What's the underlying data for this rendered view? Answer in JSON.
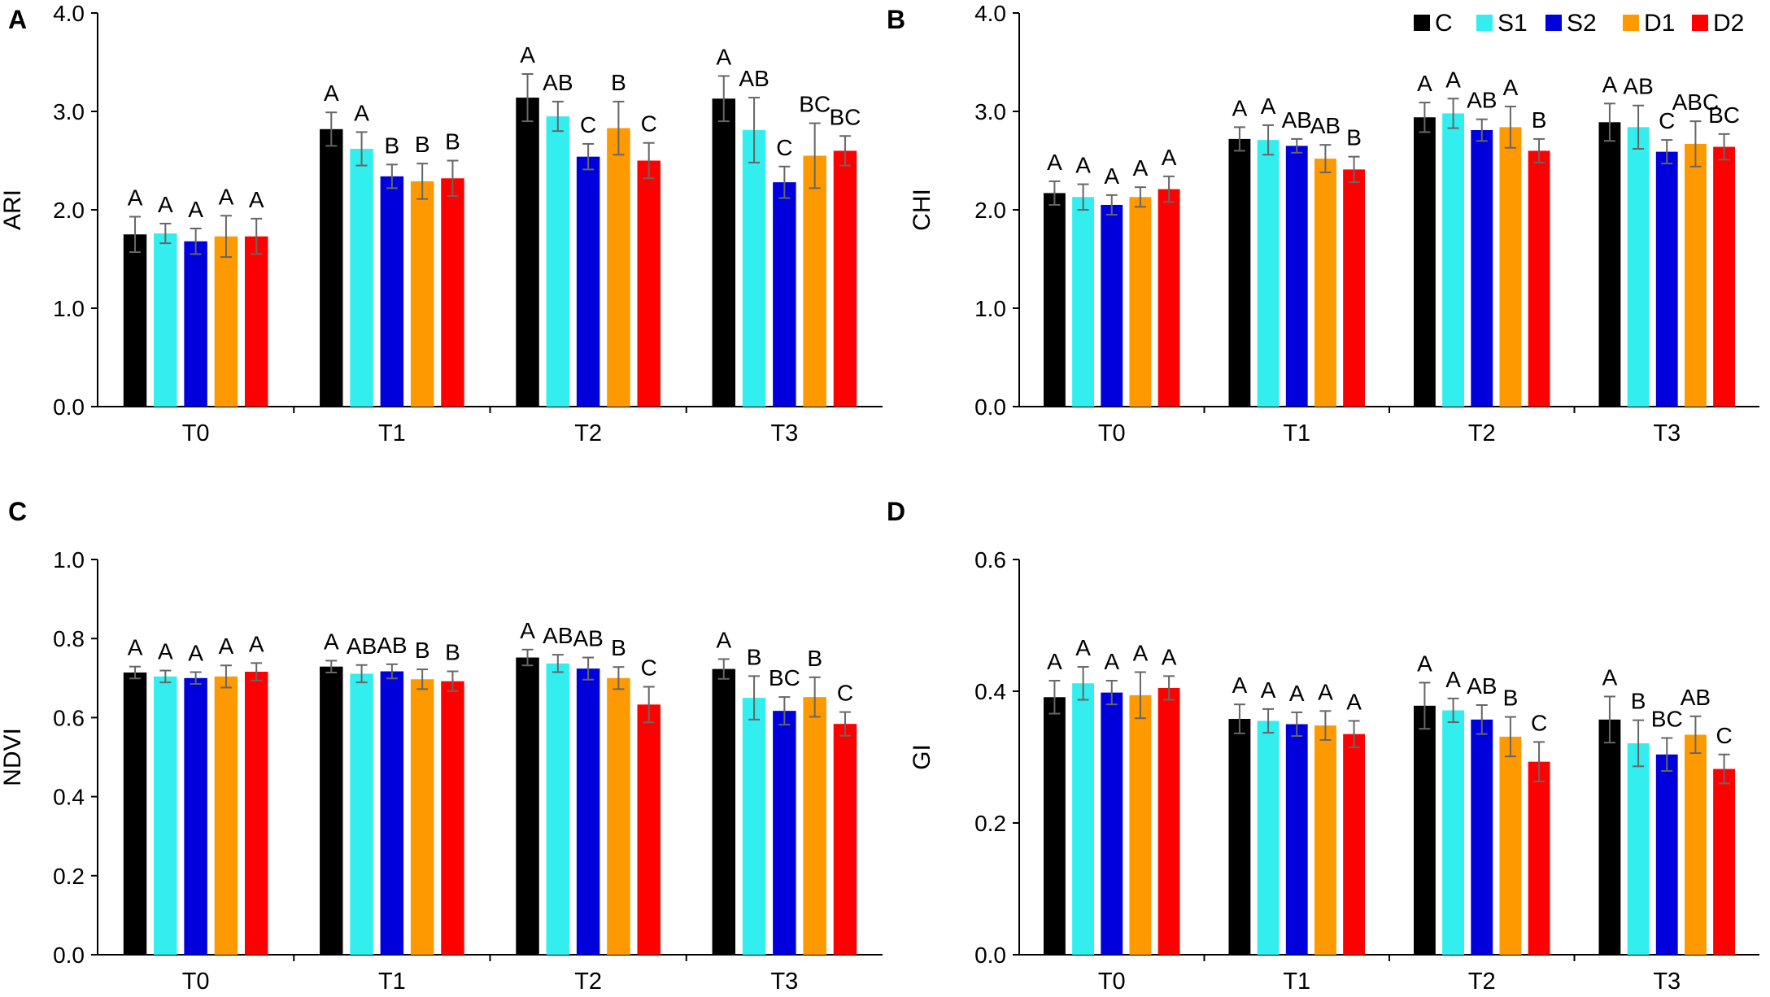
{
  "legend": [
    {
      "name": "C",
      "color": "#000000"
    },
    {
      "name": "S1",
      "color": "#33eeee"
    },
    {
      "name": "S2",
      "color": "#0000dd"
    },
    {
      "name": "D1",
      "color": "#ff9900"
    },
    {
      "name": "D2",
      "color": "#ff0000"
    }
  ],
  "error_bar_color": "#666666",
  "chart_data": [
    {
      "type": "bar",
      "panel": "A",
      "ylabel": "ARI",
      "xlabel": "",
      "categories": [
        "T0",
        "T1",
        "T2",
        "T3"
      ],
      "ylim": [
        0,
        4
      ],
      "yticks": [
        "0.0",
        "1.0",
        "2.0",
        "3.0",
        "4.0"
      ],
      "series": [
        {
          "name": "C",
          "values": [
            1.75,
            2.82,
            3.14,
            3.13
          ],
          "errors": [
            0.18,
            0.17,
            0.24,
            0.23
          ],
          "letters": [
            "A",
            "A",
            "A",
            "A"
          ]
        },
        {
          "name": "S1",
          "values": [
            1.76,
            2.62,
            2.95,
            2.81
          ],
          "errors": [
            0.1,
            0.17,
            0.15,
            0.33
          ],
          "letters": [
            "A",
            "A",
            "AB",
            "AB"
          ]
        },
        {
          "name": "S2",
          "values": [
            1.68,
            2.34,
            2.54,
            2.28
          ],
          "errors": [
            0.13,
            0.12,
            0.13,
            0.16
          ],
          "letters": [
            "A",
            "B",
            "C",
            "C"
          ]
        },
        {
          "name": "D1",
          "values": [
            1.73,
            2.29,
            2.83,
            2.55
          ],
          "errors": [
            0.21,
            0.18,
            0.27,
            0.33
          ],
          "letters": [
            "A",
            "B",
            "B",
            "BC"
          ]
        },
        {
          "name": "D2",
          "values": [
            1.73,
            2.32,
            2.5,
            2.6
          ],
          "errors": [
            0.18,
            0.18,
            0.18,
            0.15
          ],
          "letters": [
            "A",
            "B",
            "C",
            "BC"
          ]
        }
      ]
    },
    {
      "type": "bar",
      "panel": "B",
      "ylabel": "CHI",
      "xlabel": "",
      "categories": [
        "T0",
        "T1",
        "T2",
        "T3"
      ],
      "ylim": [
        0,
        4
      ],
      "yticks": [
        "0.0",
        "1.0",
        "2.0",
        "3.0",
        "4.0"
      ],
      "series": [
        {
          "name": "C",
          "values": [
            2.17,
            2.72,
            2.94,
            2.89
          ],
          "errors": [
            0.12,
            0.12,
            0.15,
            0.19
          ],
          "letters": [
            "A",
            "A",
            "A",
            "A"
          ]
        },
        {
          "name": "S1",
          "values": [
            2.13,
            2.71,
            2.98,
            2.84
          ],
          "errors": [
            0.13,
            0.15,
            0.15,
            0.22
          ],
          "letters": [
            "A",
            "A",
            "A",
            "AB"
          ]
        },
        {
          "name": "S2",
          "values": [
            2.05,
            2.65,
            2.81,
            2.59
          ],
          "errors": [
            0.1,
            0.07,
            0.11,
            0.12
          ],
          "letters": [
            "A",
            "AB",
            "AB",
            "C"
          ]
        },
        {
          "name": "D1",
          "values": [
            2.13,
            2.52,
            2.84,
            2.67
          ],
          "errors": [
            0.1,
            0.14,
            0.21,
            0.23
          ],
          "letters": [
            "A",
            "AB",
            "A",
            "ABC"
          ]
        },
        {
          "name": "D2",
          "values": [
            2.21,
            2.41,
            2.6,
            2.64
          ],
          "errors": [
            0.13,
            0.13,
            0.12,
            0.13
          ],
          "letters": [
            "A",
            "B",
            "B",
            "BC"
          ]
        }
      ]
    },
    {
      "type": "bar",
      "panel": "C",
      "ylabel": "NDVI",
      "xlabel": "",
      "categories": [
        "T0",
        "T1",
        "T2",
        "T3"
      ],
      "ylim": [
        0,
        1
      ],
      "yticks": [
        "0.0",
        "0.2",
        "0.4",
        "0.6",
        "0.8",
        "1.0"
      ],
      "series": [
        {
          "name": "C",
          "values": [
            0.714,
            0.729,
            0.752,
            0.723
          ],
          "errors": [
            0.015,
            0.015,
            0.02,
            0.025
          ],
          "letters": [
            "A",
            "A",
            "A",
            "A"
          ]
        },
        {
          "name": "S1",
          "values": [
            0.704,
            0.711,
            0.737,
            0.65
          ],
          "errors": [
            0.015,
            0.022,
            0.022,
            0.055
          ],
          "letters": [
            "A",
            "AB",
            "AB",
            "B"
          ]
        },
        {
          "name": "S2",
          "values": [
            0.7,
            0.717,
            0.724,
            0.617
          ],
          "errors": [
            0.015,
            0.018,
            0.028,
            0.035
          ],
          "letters": [
            "A",
            "AB",
            "AB",
            "BC"
          ]
        },
        {
          "name": "D1",
          "values": [
            0.704,
            0.697,
            0.7,
            0.652
          ],
          "errors": [
            0.028,
            0.025,
            0.028,
            0.05
          ],
          "letters": [
            "A",
            "B",
            "B",
            "B"
          ]
        },
        {
          "name": "D2",
          "values": [
            0.716,
            0.692,
            0.633,
            0.584
          ],
          "errors": [
            0.022,
            0.025,
            0.045,
            0.03
          ],
          "letters": [
            "A",
            "B",
            "C",
            "C"
          ]
        }
      ]
    },
    {
      "type": "bar",
      "panel": "D",
      "ylabel": "GI",
      "xlabel": "",
      "categories": [
        "T0",
        "T1",
        "T2",
        "T3"
      ],
      "ylim": [
        0,
        0.6
      ],
      "yticks": [
        "0.0",
        "0.2",
        "0.4",
        "0.6"
      ],
      "series": [
        {
          "name": "C",
          "values": [
            0.391,
            0.358,
            0.378,
            0.357
          ],
          "errors": [
            0.025,
            0.022,
            0.035,
            0.035
          ],
          "letters": [
            "A",
            "A",
            "A",
            "A"
          ]
        },
        {
          "name": "S1",
          "values": [
            0.412,
            0.355,
            0.371,
            0.321
          ],
          "errors": [
            0.025,
            0.018,
            0.018,
            0.035
          ],
          "letters": [
            "A",
            "A",
            "A",
            "B"
          ]
        },
        {
          "name": "S2",
          "values": [
            0.398,
            0.35,
            0.357,
            0.304
          ],
          "errors": [
            0.018,
            0.018,
            0.022,
            0.025
          ],
          "letters": [
            "A",
            "A",
            "AB",
            "BC"
          ]
        },
        {
          "name": "D1",
          "values": [
            0.394,
            0.348,
            0.331,
            0.334
          ],
          "errors": [
            0.035,
            0.022,
            0.03,
            0.028
          ],
          "letters": [
            "A",
            "A",
            "B",
            "AB"
          ]
        },
        {
          "name": "D2",
          "values": [
            0.405,
            0.335,
            0.293,
            0.282
          ],
          "errors": [
            0.018,
            0.02,
            0.03,
            0.022
          ],
          "letters": [
            "A",
            "A",
            "C",
            "C"
          ]
        }
      ]
    }
  ]
}
